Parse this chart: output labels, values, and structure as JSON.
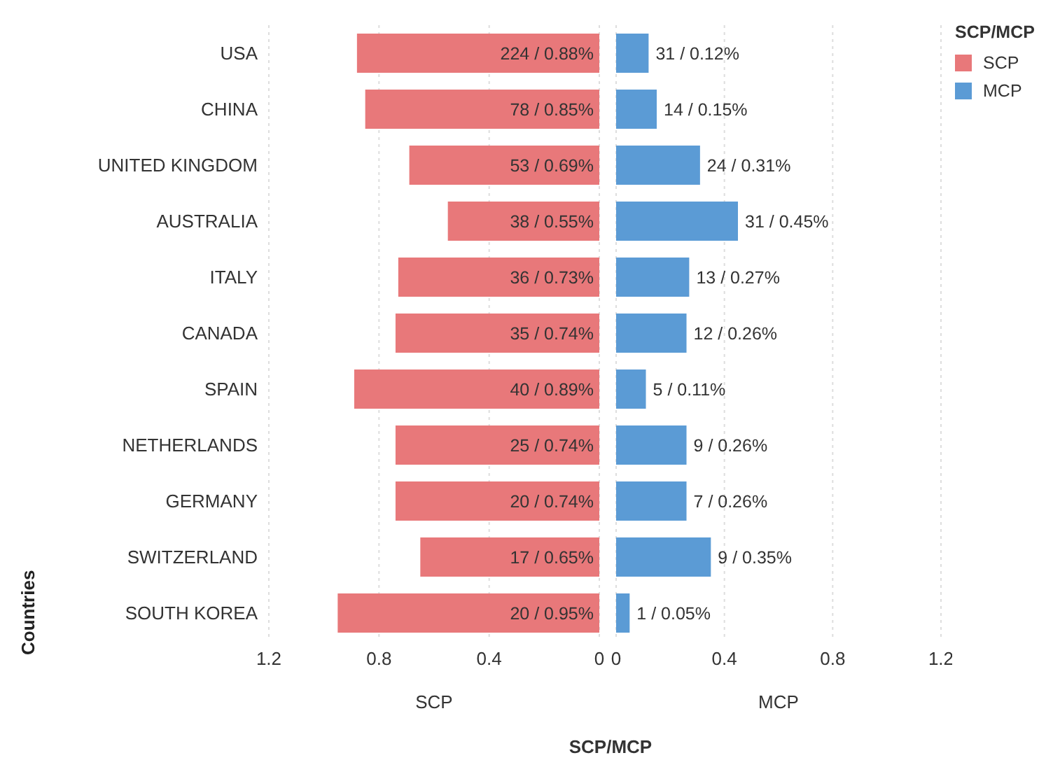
{
  "chart_data": [
    {
      "type": "bar",
      "orientation": "horizontal",
      "categories": [
        "USA",
        "CHINA",
        "UNITED KINGDOM",
        "AUSTRALIA",
        "ITALY",
        "CANADA",
        "SPAIN",
        "NETHERLANDS",
        "GERMANY",
        "SWITZERLAND",
        "SOUTH KOREA"
      ],
      "series": [
        {
          "name": "SCP",
          "color": "#e8787a",
          "values": [
            0.88,
            0.85,
            0.69,
            0.55,
            0.73,
            0.74,
            0.89,
            0.74,
            0.74,
            0.65,
            0.95
          ],
          "value_labels": [
            "224 / 0.88%",
            "78 / 0.85%",
            "53 / 0.69%",
            "38 / 0.55%",
            "36 / 0.73%",
            "35 / 0.74%",
            "40 / 0.89%",
            "25 / 0.74%",
            "20 / 0.74%",
            "17 / 0.65%",
            "20 / 0.95%"
          ]
        }
      ],
      "xlim": [
        1.2,
        0
      ],
      "xticks": [
        1.2,
        0.8,
        0.4,
        0
      ],
      "xlabel": "SCP",
      "ylabel": "Countries",
      "grid": "x",
      "annotations": [
        "SCP/MCP"
      ]
    },
    {
      "type": "bar",
      "orientation": "horizontal",
      "series": [
        {
          "name": "MCP",
          "color": "#5b9bd5",
          "values": [
            0.12,
            0.15,
            0.31,
            0.45,
            0.27,
            0.26,
            0.11,
            0.26,
            0.26,
            0.35,
            0.05
          ],
          "value_labels": [
            "31 / 0.12%",
            "14 / 0.15%",
            "24 / 0.31%",
            "31 / 0.45%",
            "13 / 0.27%",
            "12 / 0.26%",
            "5 / 0.11%",
            "9 / 0.26%",
            "7 / 0.26%",
            "9 / 0.35%",
            "1 / 0.05%"
          ]
        }
      ],
      "xlim": [
        0,
        1.2
      ],
      "xticks": [
        0,
        0.4,
        0.8,
        1.2
      ],
      "xlabel": "MCP",
      "grid": "x",
      "legend": "top right",
      "legend_title": "SCP/MCP"
    }
  ]
}
